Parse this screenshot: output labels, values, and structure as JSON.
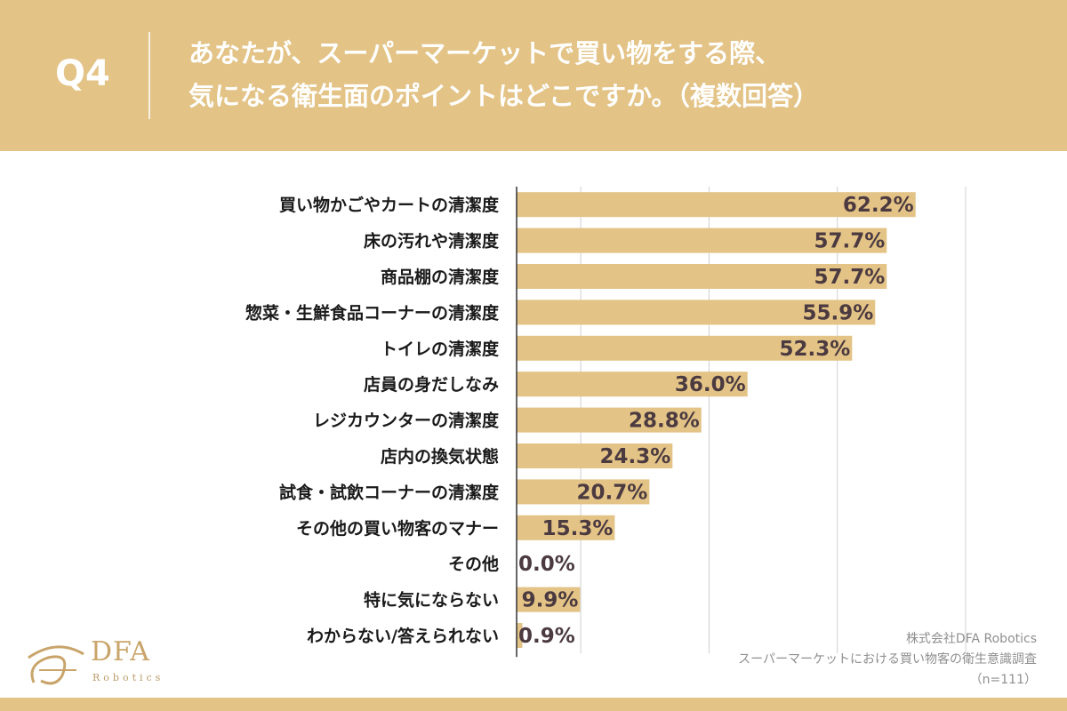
{
  "header": {
    "q_label": "Q4",
    "question_line1": "あなたが、スーパーマーケットで買い物をする際、",
    "question_line2": "気になる衛生面のポイントはどこですか。（複数回答）"
  },
  "chart_data": {
    "type": "bar",
    "orientation": "horizontal",
    "categories": [
      "買い物かごやカートの清潔度",
      "床の汚れや清潔度",
      "商品棚の清潔度",
      "惣菜・生鮮食品コーナーの清潔度",
      "トイレの清潔度",
      "店員の身だしなみ",
      "レジカウンターの清潔度",
      "店内の換気状態",
      "試食・試飲コーナーの清潔度",
      "その他の買い物客のマナー",
      "その他",
      "特に気にならない",
      "わからない/答えられない"
    ],
    "values": [
      62.2,
      57.7,
      57.7,
      55.9,
      52.3,
      36.0,
      28.8,
      24.3,
      20.7,
      15.3,
      0.0,
      9.9,
      0.9
    ],
    "value_labels": [
      "62.2%",
      "57.7%",
      "57.7%",
      "55.9%",
      "52.3%",
      "36.0%",
      "28.8%",
      "24.3%",
      "20.7%",
      "15.3%",
      "0.0%",
      "9.9%",
      "0.9%"
    ],
    "xlim": [
      0,
      70
    ],
    "grid": true,
    "bar_color": "#e3c386",
    "grid_color": "#d0d0d0"
  },
  "logo": {
    "name": "DFA",
    "sub": "Robotics"
  },
  "source": {
    "company": "株式会社DFA Robotics",
    "survey": "スーパーマーケットにおける買い物客の衛生意識調査",
    "n": "（n=111）"
  }
}
